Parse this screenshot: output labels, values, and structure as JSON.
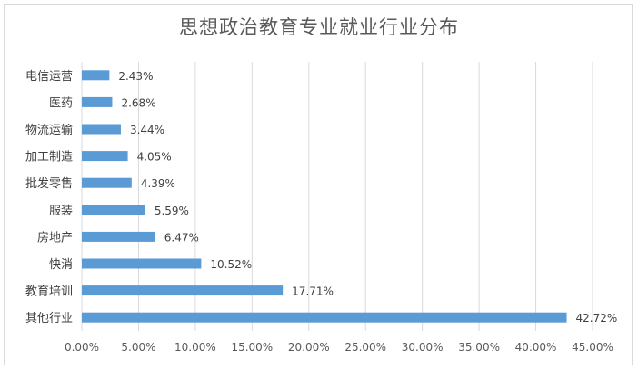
{
  "chart_data": {
    "type": "bar",
    "orientation": "horizontal",
    "title": "思想政治教育专业就业行业分布",
    "categories": [
      "电信运营",
      "医药",
      "物流运输",
      "加工制造",
      "批发零售",
      "服装",
      "房地产",
      "快消",
      "教育培训",
      "其他行业"
    ],
    "values": [
      2.43,
      2.68,
      3.44,
      4.05,
      4.39,
      5.59,
      6.47,
      10.52,
      17.71,
      42.72
    ],
    "data_labels": [
      "2.43%",
      "2.68%",
      "3.44%",
      "4.05%",
      "4.39%",
      "5.59%",
      "6.47%",
      "10.52%",
      "17.71%",
      "42.72%"
    ],
    "xlim": [
      0,
      45
    ],
    "x_ticks": [
      "0.00%",
      "5.00%",
      "10.00%",
      "15.00%",
      "20.00%",
      "25.00%",
      "30.00%",
      "35.00%",
      "40.00%",
      "45.00%"
    ],
    "grid": true,
    "bar_color": "#5b9bd5"
  }
}
